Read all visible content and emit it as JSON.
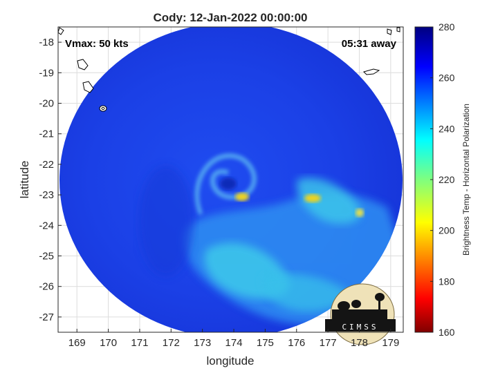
{
  "title": "Cody: 12-Jan-2022 00:00:00",
  "annotations": {
    "vmax": "Vmax: 50 kts",
    "time_away": "05:31 away"
  },
  "axes": {
    "xlabel": "longitude",
    "ylabel": "latitude",
    "xlim": [
      168.4,
      179.4
    ],
    "ylim": [
      -27.5,
      -17.5
    ],
    "xticks": [
      "169",
      "170",
      "171",
      "172",
      "173",
      "174",
      "175",
      "176",
      "177",
      "178",
      "179"
    ],
    "yticks": [
      "-18",
      "-19",
      "-20",
      "-21",
      "-22",
      "-23",
      "-24",
      "-25",
      "-26",
      "-27"
    ],
    "grid": true
  },
  "colorbar": {
    "label": "Brightness Temp - Horizontal Polarization",
    "ticks": [
      "280",
      "260",
      "240",
      "220",
      "200",
      "180",
      "160"
    ],
    "range": [
      160,
      280
    ],
    "colormap": "jet"
  },
  "storm_center": {
    "lon": 173.8,
    "lat": -22.9
  },
  "logo": {
    "text": "CIMSS"
  },
  "colors": {
    "background_swath": "#1a3fe0",
    "cold_band": "#36c6e8",
    "warm_spot": "#f2d21a",
    "text": "#262626"
  }
}
